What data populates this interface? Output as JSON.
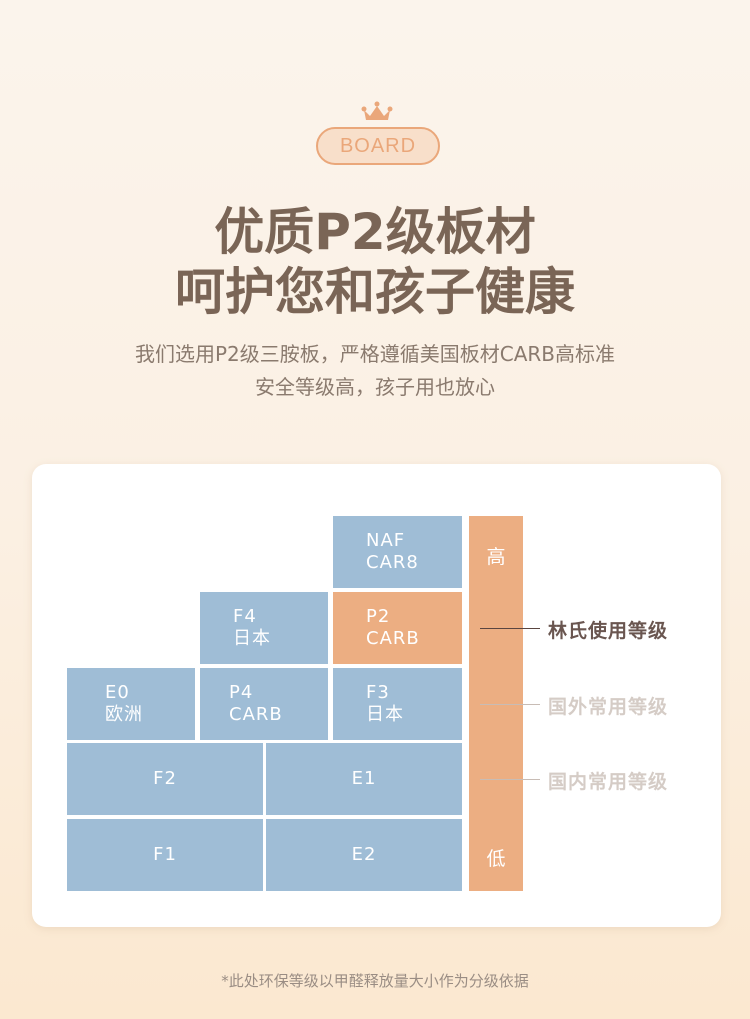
{
  "header": {
    "badge": "BOARD",
    "title_line1": "优质P2级板材",
    "title_line2": "呵护您和孩子健康",
    "subtitle_line1": "我们选用P2级三胺板，严格遵循美国板材CARB高标准",
    "subtitle_line2": "安全等级高，孩子用也放心"
  },
  "grades": {
    "naf": {
      "l1": "NAF",
      "l2": "CAR8"
    },
    "f4": {
      "l1": "F4",
      "l2": "日本"
    },
    "p2": {
      "l1": "P2",
      "l2": "CARB"
    },
    "e0": {
      "l1": "E0",
      "l2": "欧洲"
    },
    "p4": {
      "l1": "P4",
      "l2": "CARB"
    },
    "f3": {
      "l1": "F3",
      "l2": "日本"
    },
    "f2": "F2",
    "e1": "E1",
    "f1": "F1",
    "e2": "E2"
  },
  "scale": {
    "high": "高",
    "low": "低"
  },
  "labels": {
    "lins": "林氏使用等级",
    "foreign": "国外常用等级",
    "domestic": "国内常用等级"
  },
  "colors": {
    "blue": "#9fbdd6",
    "orange": "#ecae82",
    "title": "#7a6556"
  },
  "footnote": "*此处环保等级以甲醛释放量大小作为分级依据"
}
